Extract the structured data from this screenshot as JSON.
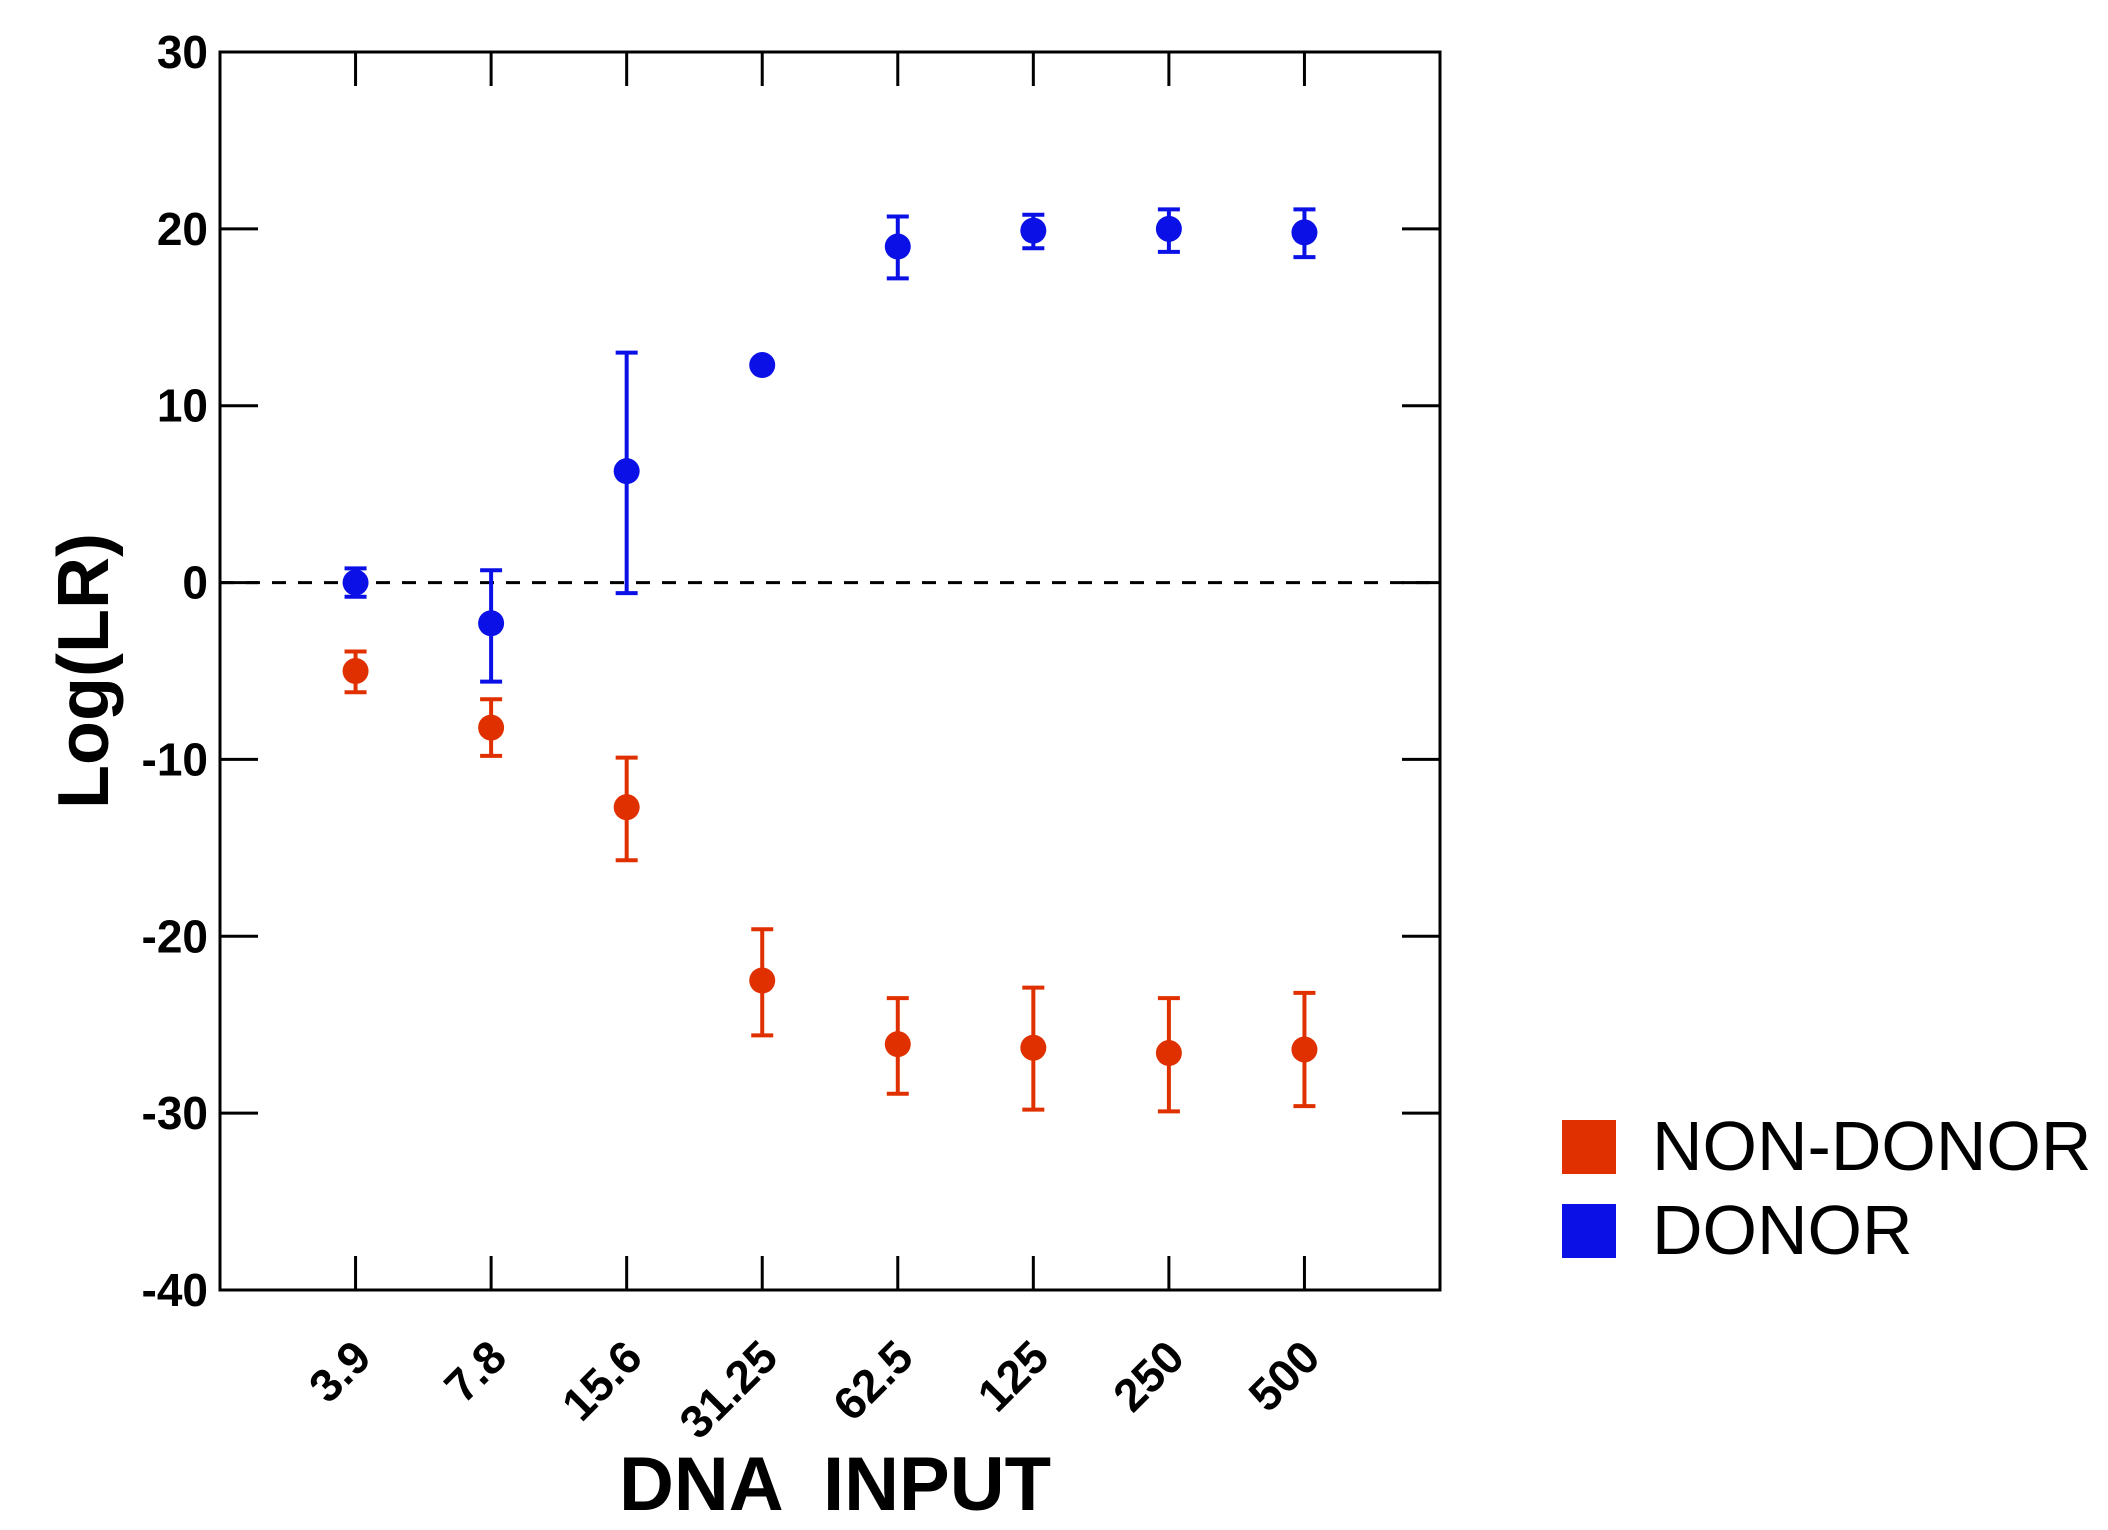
{
  "chart_data": {
    "type": "scatter",
    "xlabel": "DNA  INPUT",
    "ylabel": "Log(LR)",
    "ylim": [
      -40,
      30
    ],
    "yticks": [
      30,
      20,
      10,
      0,
      -10,
      -20,
      -30,
      -40
    ],
    "categories": [
      "3.9",
      "7.8",
      "15.6",
      "31.25",
      "62.5",
      "125",
      "250",
      "500"
    ],
    "reference_line": {
      "y": 0,
      "style": "dashed"
    },
    "grid": false,
    "legend_position": "right",
    "series": [
      {
        "name": "NON-DONOR",
        "color": "#e03000",
        "values": [
          -5.0,
          -8.2,
          -12.7,
          -22.5,
          -26.1,
          -26.3,
          -26.6,
          -26.4
        ],
        "err_low": [
          -6.2,
          -9.8,
          -15.7,
          -25.6,
          -28.9,
          -29.8,
          -29.9,
          -29.6
        ],
        "err_high": [
          -3.9,
          -6.6,
          -9.9,
          -19.6,
          -23.5,
          -22.9,
          -23.5,
          -23.2
        ]
      },
      {
        "name": "DONOR",
        "color": "#0a10e6",
        "values": [
          0.0,
          -2.3,
          6.3,
          12.3,
          19.0,
          19.9,
          20.0,
          19.8
        ],
        "err_low": [
          -0.8,
          -5.6,
          -0.6,
          null,
          17.2,
          18.9,
          18.7,
          18.4
        ],
        "err_high": [
          0.8,
          0.7,
          13.0,
          null,
          20.7,
          20.8,
          21.1,
          21.1
        ]
      }
    ]
  }
}
